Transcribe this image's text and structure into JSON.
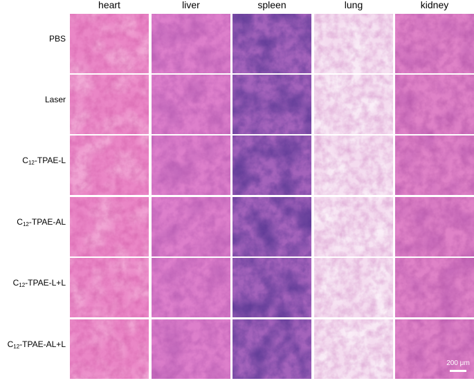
{
  "columns": [
    "heart",
    "liver",
    "spleen",
    "lung",
    "kidney"
  ],
  "rows": [
    {
      "parts": [
        "PBS"
      ]
    },
    {
      "parts": [
        "Laser"
      ]
    },
    {
      "parts": [
        "C",
        "12",
        "-TPAE-L"
      ]
    },
    {
      "parts": [
        "C",
        "12",
        "-TPAE-AL"
      ]
    },
    {
      "parts": [
        "C",
        "12",
        "-TPAE-L+L"
      ]
    },
    {
      "parts": [
        "C",
        "12",
        "-TPAE-AL+L"
      ]
    }
  ],
  "scale_bar": "200 μm"
}
